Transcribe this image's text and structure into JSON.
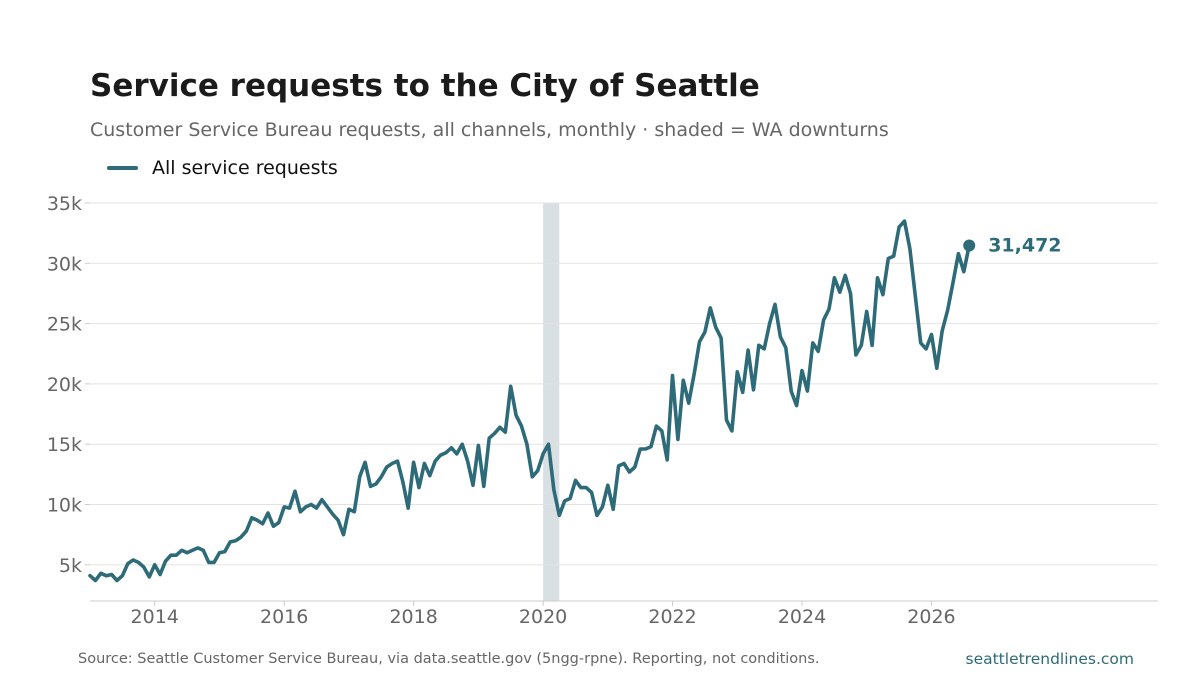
{
  "header": {
    "title": "Service requests to the City of Seattle",
    "subtitle": "Customer Service Bureau requests, all channels, monthly · shaded = WA downturns"
  },
  "footer": {
    "source": "Source: Seattle Customer Service Bureau, via data.seattle.gov (5ngg-rpne). Reporting, not conditions.",
    "site": "seattletrendlines.com"
  },
  "colors": {
    "series": "#2e6b78",
    "shade": "#d8e0e3",
    "grid": "#e3e3e3",
    "axis": "#cccccc",
    "tick_text": "#666666"
  },
  "chart_data": {
    "type": "line",
    "title": "Service requests to the City of Seattle",
    "subtitle": "Customer Service Bureau requests, all channels, monthly · shaded = WA downturns",
    "xlabel": "",
    "ylabel": "",
    "xlim": [
      "2013-01",
      "2029-07"
    ],
    "ylim": [
      2000,
      35000
    ],
    "yticks": [
      5000,
      10000,
      15000,
      20000,
      25000,
      30000,
      35000
    ],
    "ytick_labels": [
      "5k",
      "10k",
      "15k",
      "20k",
      "25k",
      "30k",
      "35k"
    ],
    "xticks": [
      "2014-01",
      "2016-01",
      "2018-01",
      "2020-01",
      "2022-01",
      "2024-01",
      "2026-01"
    ],
    "xtick_labels": [
      "2014",
      "2016",
      "2018",
      "2020",
      "2022",
      "2024",
      "2026"
    ],
    "grid": "horizontal",
    "legend_position": "top-left",
    "shaded_periods": [
      {
        "start": "2020-01",
        "end": "2020-04"
      }
    ],
    "end_label": "31,472",
    "series": [
      {
        "name": "All service requests",
        "x": [
          "2013-01",
          "2013-02",
          "2013-03",
          "2013-04",
          "2013-05",
          "2013-06",
          "2013-07",
          "2013-08",
          "2013-09",
          "2013-10",
          "2013-11",
          "2013-12",
          "2014-01",
          "2014-02",
          "2014-03",
          "2014-04",
          "2014-05",
          "2014-06",
          "2014-07",
          "2014-08",
          "2014-09",
          "2014-10",
          "2014-11",
          "2014-12",
          "2015-01",
          "2015-02",
          "2015-03",
          "2015-04",
          "2015-05",
          "2015-06",
          "2015-07",
          "2015-08",
          "2015-09",
          "2015-10",
          "2015-11",
          "2015-12",
          "2016-01",
          "2016-02",
          "2016-03",
          "2016-04",
          "2016-05",
          "2016-06",
          "2016-07",
          "2016-08",
          "2016-09",
          "2016-10",
          "2016-11",
          "2016-12",
          "2017-01",
          "2017-02",
          "2017-03",
          "2017-04",
          "2017-05",
          "2017-06",
          "2017-07",
          "2017-08",
          "2017-09",
          "2017-10",
          "2017-11",
          "2017-12",
          "2018-01",
          "2018-02",
          "2018-03",
          "2018-04",
          "2018-05",
          "2018-06",
          "2018-07",
          "2018-08",
          "2018-09",
          "2018-10",
          "2018-11",
          "2018-12",
          "2019-01",
          "2019-02",
          "2019-03",
          "2019-04",
          "2019-05",
          "2019-06",
          "2019-07",
          "2019-08",
          "2019-09",
          "2019-10",
          "2019-11",
          "2019-12",
          "2020-01",
          "2020-02",
          "2020-03",
          "2020-04",
          "2020-05",
          "2020-06",
          "2020-07",
          "2020-08",
          "2020-09",
          "2020-10",
          "2020-11",
          "2020-12",
          "2021-01",
          "2021-02",
          "2021-03",
          "2021-04",
          "2021-05",
          "2021-06",
          "2021-07",
          "2021-08",
          "2021-09",
          "2021-10",
          "2021-11",
          "2021-12",
          "2022-01",
          "2022-02",
          "2022-03",
          "2022-04",
          "2022-05",
          "2022-06",
          "2022-07",
          "2022-08",
          "2022-09",
          "2022-10",
          "2022-11",
          "2022-12",
          "2023-01",
          "2023-02",
          "2023-03",
          "2023-04",
          "2023-05",
          "2023-06",
          "2023-07",
          "2023-08",
          "2023-09",
          "2023-10",
          "2023-11",
          "2023-12",
          "2024-01",
          "2024-02",
          "2024-03",
          "2024-04",
          "2024-05",
          "2024-06",
          "2024-07",
          "2024-08",
          "2024-09",
          "2024-10",
          "2024-11",
          "2024-12",
          "2025-01",
          "2025-02",
          "2025-03",
          "2025-04",
          "2025-05",
          "2025-06",
          "2025-07",
          "2025-08",
          "2025-09",
          "2025-10",
          "2025-11",
          "2025-12",
          "2026-01",
          "2026-02",
          "2026-03",
          "2026-04",
          "2026-05",
          "2026-06",
          "2026-07",
          "2026-08"
        ],
        "values": [
          4100,
          3700,
          4300,
          4100,
          4200,
          3700,
          4100,
          5100,
          5400,
          5200,
          4800,
          4000,
          5000,
          4200,
          5300,
          5800,
          5800,
          6200,
          6000,
          6200,
          6400,
          6200,
          5200,
          5200,
          6000,
          6100,
          6900,
          7000,
          7300,
          7800,
          8900,
          8700,
          8400,
          9300,
          8200,
          8500,
          9800,
          9700,
          11100,
          9400,
          9800,
          10000,
          9700,
          10400,
          9800,
          9200,
          8700,
          7500,
          9600,
          9400,
          12300,
          13500,
          11500,
          11700,
          12300,
          13100,
          13400,
          13600,
          11900,
          9700,
          13500,
          11400,
          13400,
          12400,
          13600,
          14100,
          14300,
          14700,
          14200,
          15000,
          13600,
          11600,
          14900,
          11500,
          15500,
          15900,
          16400,
          16000,
          19800,
          17400,
          16500,
          15000,
          12300,
          12800,
          14200,
          15000,
          11200,
          9100,
          10300,
          10500,
          12000,
          11400,
          11400,
          11000,
          9100,
          9800,
          11600,
          9600,
          13200,
          13400,
          12700,
          13100,
          14600,
          14600,
          14800,
          16500,
          16100,
          13700,
          20700,
          15400,
          20300,
          18400,
          20800,
          23500,
          24300,
          26300,
          24700,
          23800,
          17000,
          16100,
          21000,
          19300,
          22800,
          19500,
          23200,
          22900,
          25000,
          26600,
          23900,
          23000,
          19400,
          18200,
          21100,
          19400,
          23400,
          22700,
          25300,
          26200,
          28800,
          27600,
          29000,
          27500,
          22400,
          23200,
          26000,
          23200,
          28800,
          27400,
          30400,
          30600,
          33000,
          33500,
          31200,
          27300,
          23400,
          22900,
          24100,
          21300,
          24400,
          26100,
          28400,
          30800,
          29300,
          31472
        ]
      }
    ]
  }
}
